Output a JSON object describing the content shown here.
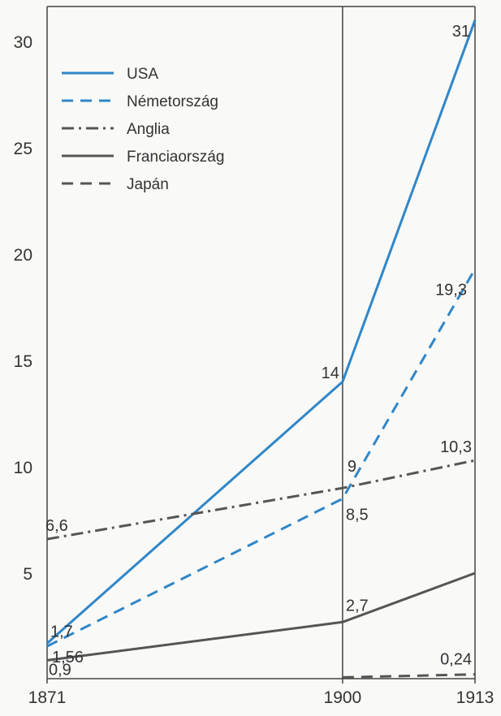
{
  "chart_data": {
    "type": "line",
    "title": "",
    "xlabel": "",
    "ylabel": "",
    "x": [
      1871,
      1900,
      1913
    ],
    "xlim": [
      1871,
      1913
    ],
    "ylim": [
      0,
      32
    ],
    "y_ticks": [
      5,
      10,
      15,
      20,
      25,
      30
    ],
    "x_tick_labels": [
      "1871",
      "1900",
      "1913"
    ],
    "grid": false,
    "legend_position": "top-left",
    "series": [
      {
        "name": "USA",
        "color": "#2f86c8",
        "dash": "solid",
        "points": [
          [
            1871,
            1.7
          ],
          [
            1900,
            14
          ],
          [
            1913,
            31
          ]
        ]
      },
      {
        "name": "Németország",
        "color": "#2f86c8",
        "dash": "dashed",
        "points": [
          [
            1871,
            1.56
          ],
          [
            1900,
            8.5
          ],
          [
            1913,
            19.3
          ]
        ]
      },
      {
        "name": "Anglia",
        "color": "#555555",
        "dash": "dashdot",
        "points": [
          [
            1871,
            6.6
          ],
          [
            1900,
            9
          ],
          [
            1913,
            10.3
          ]
        ]
      },
      {
        "name": "Franciaország",
        "color": "#555555",
        "dash": "solid",
        "points": [
          [
            1871,
            0.9
          ],
          [
            1900,
            2.7
          ],
          [
            1913,
            5
          ]
        ]
      },
      {
        "name": "Japán",
        "color": "#555555",
        "dash": "dashed",
        "points": [
          [
            1900,
            0.1
          ],
          [
            1913,
            0.24
          ]
        ]
      }
    ],
    "data_labels": [
      {
        "text": "1,7",
        "x": 1871,
        "y": 1.7
      },
      {
        "text": "1,56",
        "x": 1871,
        "y": 1.56
      },
      {
        "text": "0,9",
        "x": 1871,
        "y": 0.9
      },
      {
        "text": "6,6",
        "x": 1871,
        "y": 6.6
      },
      {
        "text": "14",
        "x": 1900,
        "y": 14
      },
      {
        "text": "9",
        "x": 1900,
        "y": 9
      },
      {
        "text": "8,5",
        "x": 1900,
        "y": 8.5
      },
      {
        "text": "2,7",
        "x": 1900,
        "y": 2.7
      },
      {
        "text": "31",
        "x": 1913,
        "y": 31
      },
      {
        "text": "19,3",
        "x": 1913,
        "y": 19.3
      },
      {
        "text": "10,3",
        "x": 1913,
        "y": 10.3
      },
      {
        "text": "0,24",
        "x": 1913,
        "y": 0.24
      }
    ]
  }
}
